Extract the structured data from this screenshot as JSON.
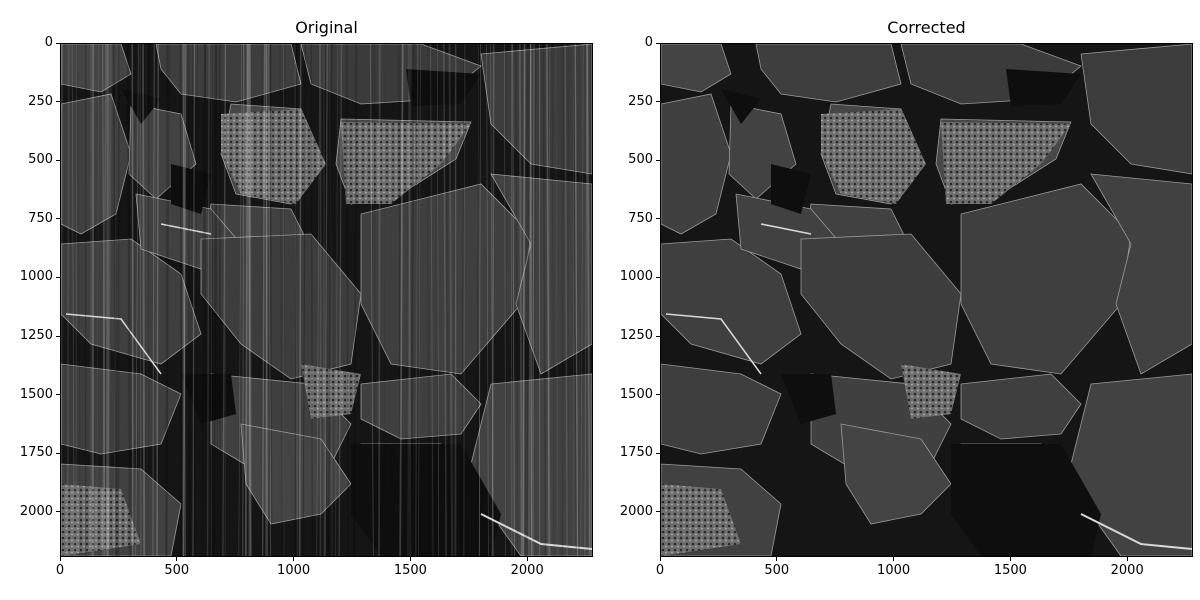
{
  "figure": {
    "panels": [
      {
        "id": "left",
        "title": "Original",
        "x_ticks": [
          "0",
          "500",
          "1000",
          "1500",
          "2000"
        ],
        "y_ticks": [
          "0",
          "250",
          "500",
          "750",
          "1000",
          "1250",
          "1500",
          "1750",
          "2000"
        ],
        "striped": true
      },
      {
        "id": "right",
        "title": "Corrected",
        "x_ticks": [
          "0",
          "500",
          "1000",
          "1500",
          "2000"
        ],
        "y_ticks": [
          "0",
          "250",
          "500",
          "750",
          "1000",
          "1250",
          "1500",
          "1750",
          "2000"
        ],
        "striped": false
      }
    ],
    "colors": {
      "background": "#ffffff",
      "image_dark": "#151515",
      "image_mid": "#3b3b3b",
      "image_light": "#8a8a8a",
      "axis": "#000000"
    }
  }
}
